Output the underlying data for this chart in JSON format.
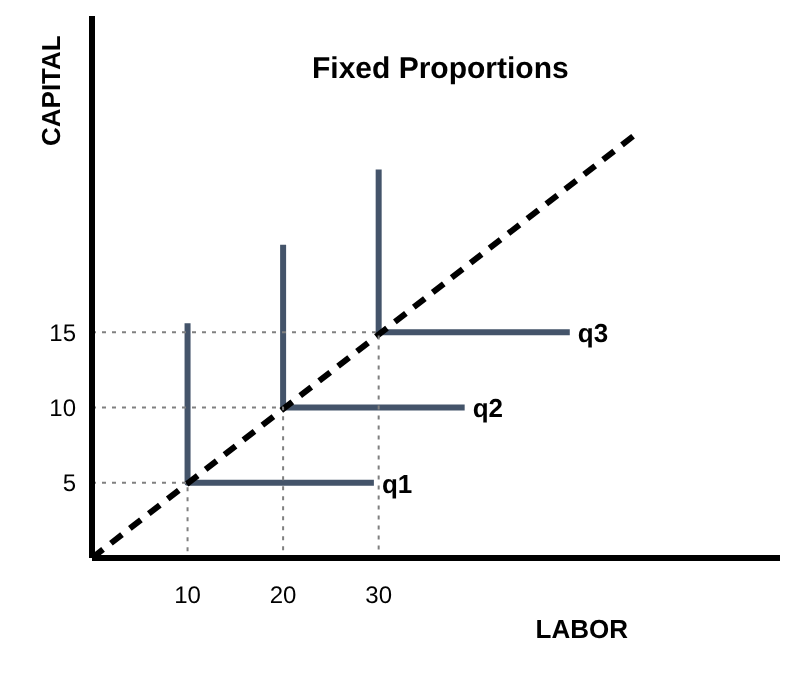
{
  "chart_data": {
    "type": "line",
    "title": "Fixed Proportions",
    "xlabel": "LABOR",
    "ylabel": "CAPITAL",
    "xlim": [
      0,
      72
    ],
    "ylim": [
      0,
      36
    ],
    "xticks": [
      10,
      20,
      30
    ],
    "yticks": [
      5,
      10,
      15
    ],
    "marker": "none",
    "series": [
      {
        "name": "q1",
        "color": "#44546a",
        "x": [
          10,
          10,
          29.5
        ],
        "values": [
          15.6,
          5,
          5
        ],
        "line_style": "solid"
      },
      {
        "name": "q2",
        "color": "#44546a",
        "x": [
          20,
          20,
          39
        ],
        "values": [
          20.8,
          10,
          10
        ],
        "line_style": "solid"
      },
      {
        "name": "q3",
        "color": "#44546a",
        "x": [
          30,
          30,
          50
        ],
        "values": [
          25.8,
          15,
          15
        ],
        "line_style": "solid"
      },
      {
        "color": "#000000",
        "x": [
          0,
          57
        ],
        "values": [
          0,
          28.2
        ],
        "line_style": "dashed"
      },
      {
        "color": "#808080",
        "x": [
          0,
          10,
          10
        ],
        "values": [
          5,
          5,
          0
        ],
        "line_style": "dotted"
      },
      {
        "color": "#808080",
        "x": [
          0,
          20,
          20
        ],
        "values": [
          10,
          10,
          0
        ],
        "line_style": "dotted"
      },
      {
        "color": "#808080",
        "x": [
          0,
          30,
          30
        ],
        "values": [
          15,
          15,
          0
        ],
        "line_style": "dotted"
      }
    ]
  }
}
